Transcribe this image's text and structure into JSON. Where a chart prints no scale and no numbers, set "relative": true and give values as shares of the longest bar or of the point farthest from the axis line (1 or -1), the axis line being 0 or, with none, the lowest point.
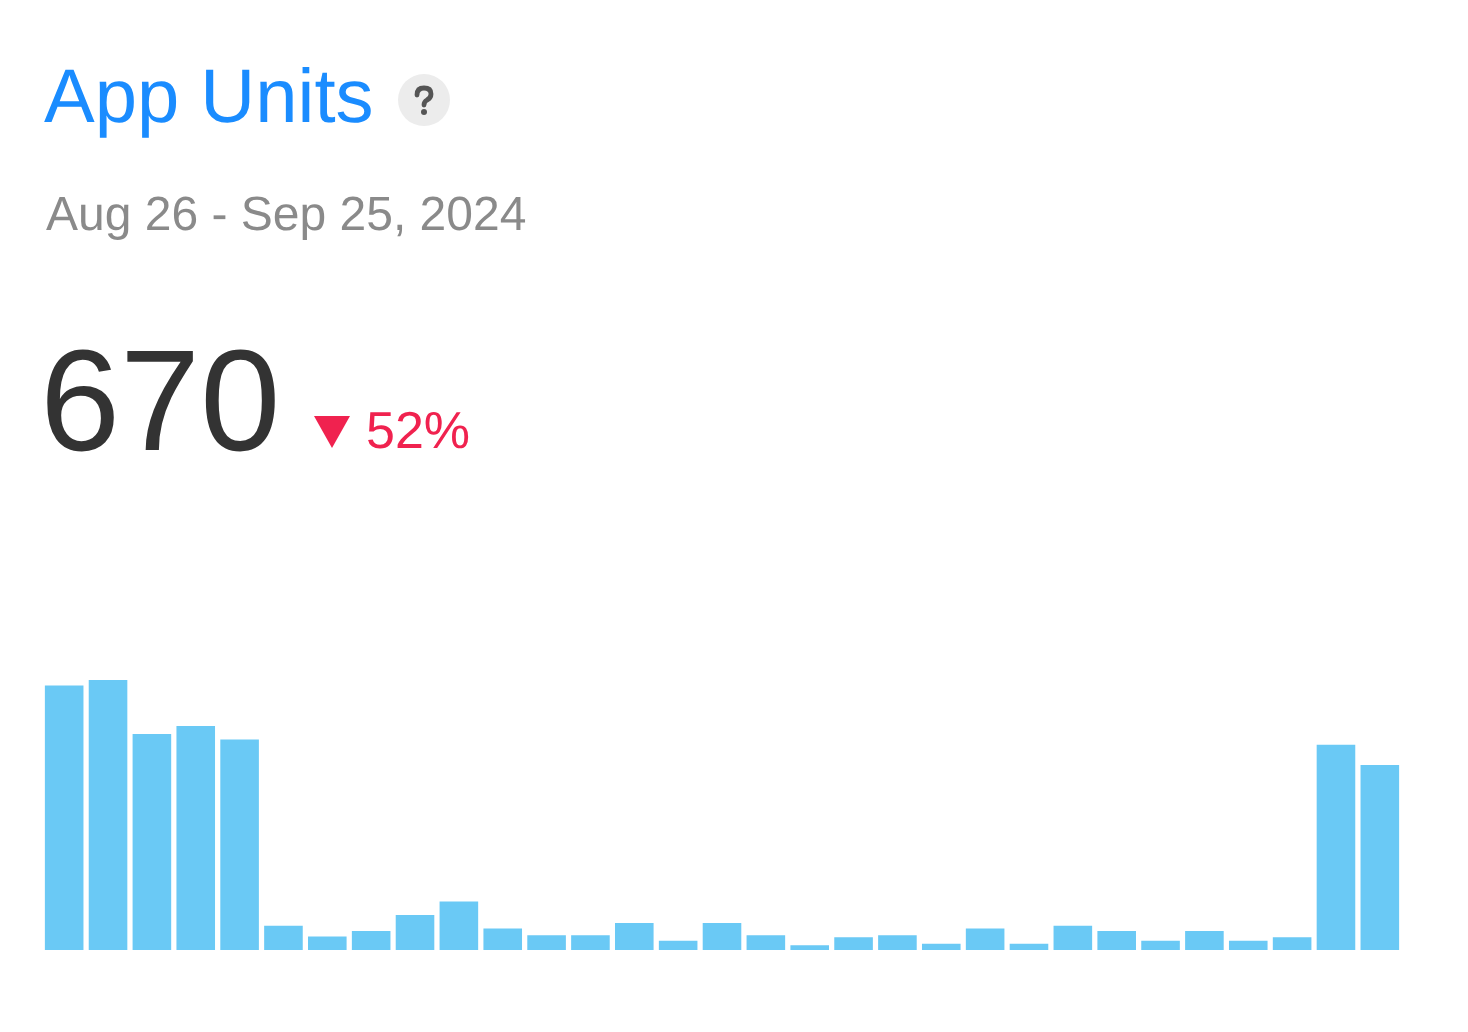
{
  "chart_data": {
    "type": "bar",
    "title": "App Units",
    "subtitle": "Aug 26 - Sep 25, 2024",
    "annotations": [
      "670",
      "52%"
    ],
    "categories": [
      null,
      null,
      null,
      null,
      null,
      null,
      null,
      null,
      null,
      null,
      null,
      null,
      null,
      null,
      null,
      null,
      null,
      null,
      null,
      null,
      null,
      null,
      null,
      null,
      null,
      null,
      null,
      null,
      null,
      null,
      null
    ],
    "values": [
      0.98,
      1,
      0.8,
      0.83,
      0.78,
      0.09,
      0.05,
      0.07,
      0.13,
      0.18,
      0.08,
      0.055,
      0.055,
      0.1,
      0.034,
      0.1,
      0.055,
      0.018,
      0.047,
      0.055,
      0.023,
      0.08,
      0.023,
      0.09,
      0.07,
      0.034,
      0.07,
      0.034,
      0.047,
      0.76,
      0.685
    ],
    "color": "#6ac9f5",
    "relative": true
  }
}
